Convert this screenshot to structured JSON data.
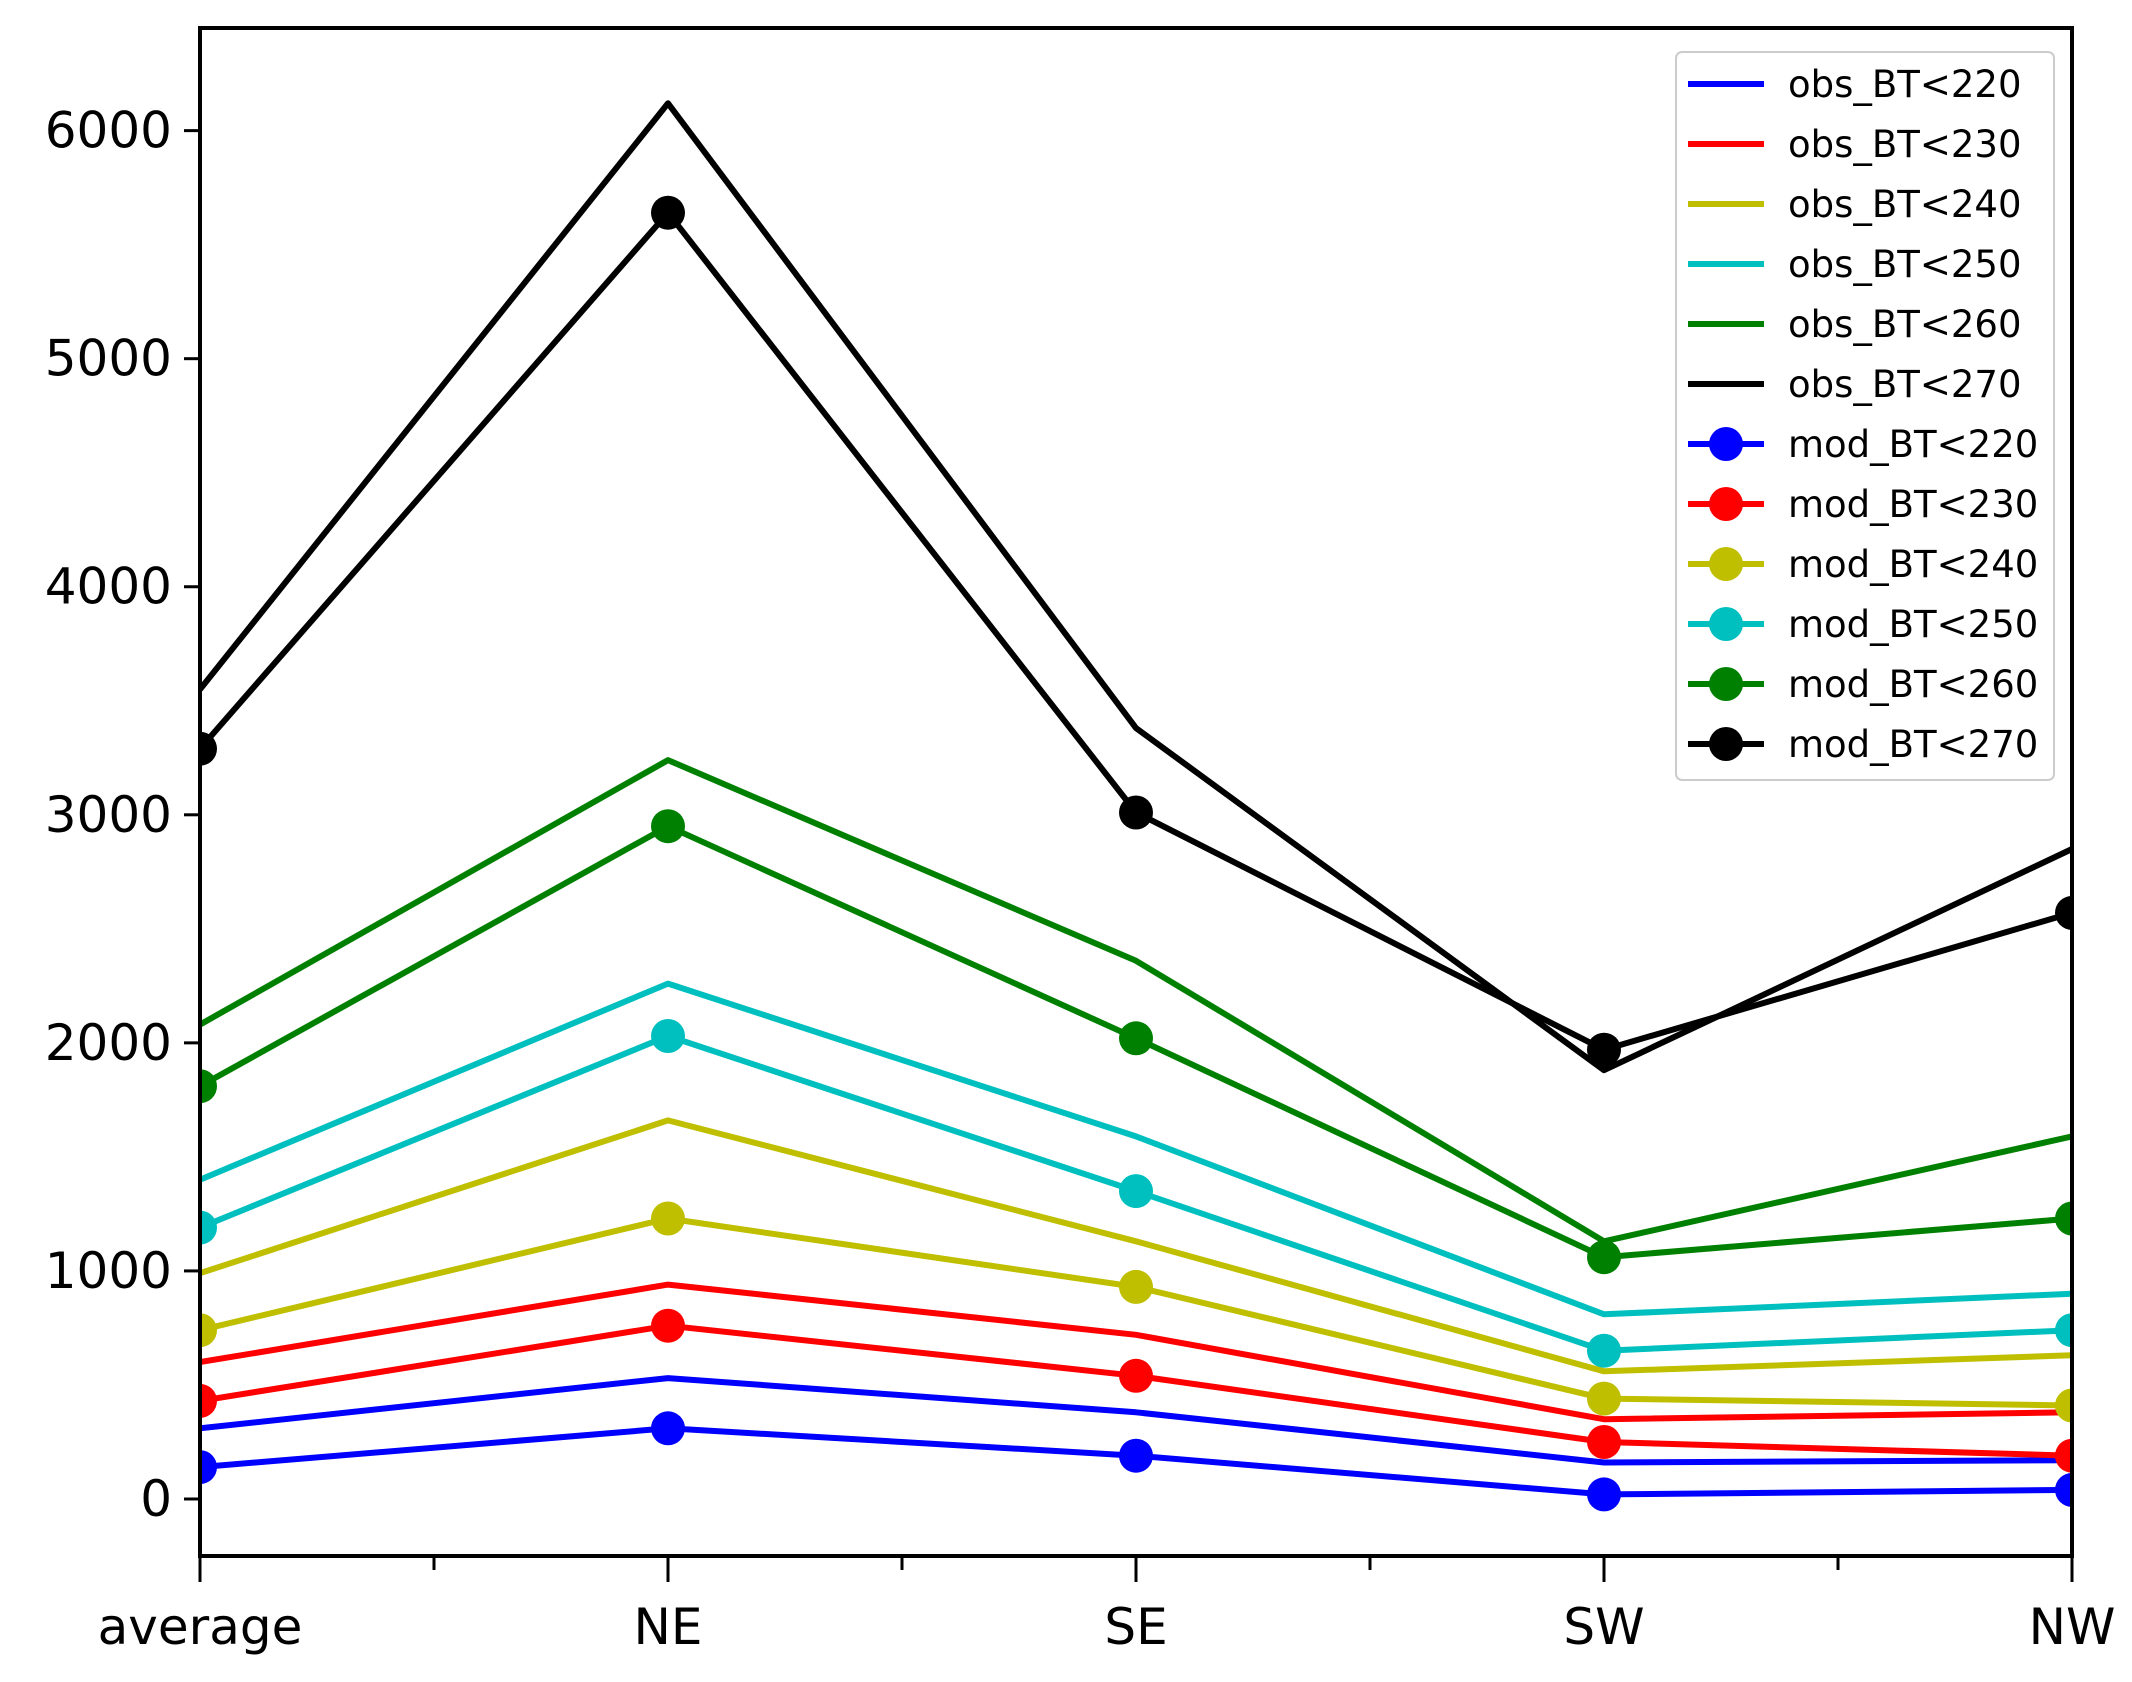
{
  "chart_data": {
    "type": "line",
    "title": "",
    "xlabel": "",
    "ylabel": "",
    "categories": [
      "average",
      "NE",
      "SE",
      "SW",
      "NW"
    ],
    "ylim": [
      -250,
      6450
    ],
    "yticks": [
      0,
      1000,
      2000,
      3000,
      4000,
      5000,
      6000
    ],
    "ytick_labels": [
      "0",
      "1000",
      "2000",
      "3000",
      "4000",
      "5000",
      "6000"
    ],
    "minor_xticks": [
      0.5,
      1.5,
      2.5,
      3.5
    ],
    "grid": false,
    "legend_position": "top-right",
    "series": [
      {
        "name": "obs_BT<220",
        "color": "#0000ff",
        "marker": "none",
        "values": [
          310,
          530,
          380,
          160,
          170
        ]
      },
      {
        "name": "obs_BT<230",
        "color": "#ff0000",
        "marker": "none",
        "values": [
          600,
          940,
          720,
          350,
          380
        ]
      },
      {
        "name": "obs_BT<240",
        "color": "#bfbf00",
        "marker": "none",
        "values": [
          990,
          1660,
          1130,
          560,
          630
        ]
      },
      {
        "name": "obs_BT<250",
        "color": "#00bfbf",
        "marker": "none",
        "values": [
          1400,
          2260,
          1590,
          810,
          900
        ]
      },
      {
        "name": "obs_BT<260",
        "color": "#008000",
        "marker": "none",
        "values": [
          2080,
          3240,
          2360,
          1130,
          1590
        ]
      },
      {
        "name": "obs_BT<270",
        "color": "#000000",
        "marker": "none",
        "values": [
          3550,
          6120,
          3380,
          1880,
          2850
        ]
      },
      {
        "name": "mod_BT<220",
        "color": "#0000ff",
        "marker": "circle",
        "values": [
          140,
          310,
          190,
          20,
          40
        ]
      },
      {
        "name": "mod_BT<230",
        "color": "#ff0000",
        "marker": "circle",
        "values": [
          430,
          760,
          540,
          250,
          190
        ]
      },
      {
        "name": "mod_BT<240",
        "color": "#bfbf00",
        "marker": "circle",
        "values": [
          740,
          1230,
          930,
          440,
          410
        ]
      },
      {
        "name": "mod_BT<250",
        "color": "#00bfbf",
        "marker": "circle",
        "values": [
          1190,
          2030,
          1350,
          650,
          740
        ]
      },
      {
        "name": "mod_BT<260",
        "color": "#008000",
        "marker": "circle",
        "values": [
          1810,
          2950,
          2020,
          1060,
          1230
        ]
      },
      {
        "name": "mod_BT<270",
        "color": "#000000",
        "marker": "circle",
        "values": [
          3290,
          5640,
          3010,
          1970,
          2570
        ]
      }
    ]
  }
}
